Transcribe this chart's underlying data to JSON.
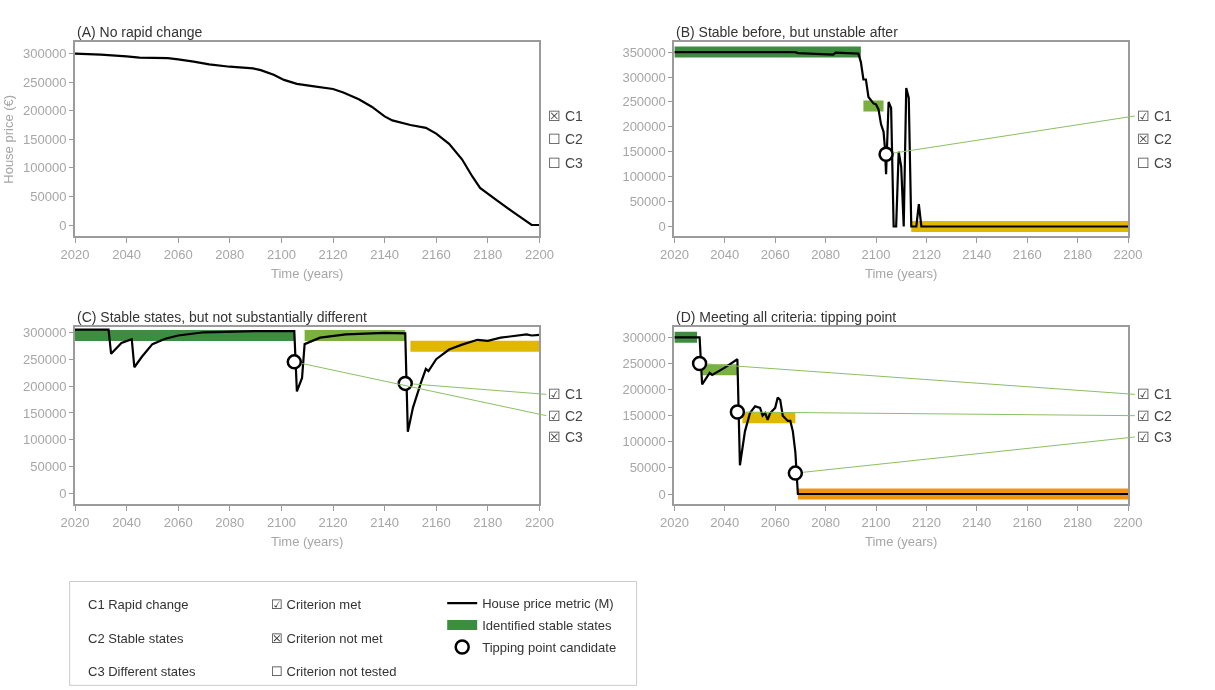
{
  "chart_data": [
    {
      "type": "line",
      "title": "(A) No rapid change",
      "xlabel": "Time (years)",
      "ylabel": "House price (€)",
      "xlim": [
        2020,
        2200
      ],
      "xticks": [
        2020,
        2040,
        2060,
        2080,
        2100,
        2120,
        2140,
        2160,
        2180,
        2200
      ],
      "ylim": [
        -20000,
        320000
      ],
      "yticks": [
        0,
        50000,
        100000,
        150000,
        200000,
        250000,
        300000
      ],
      "legend": "bottom",
      "series": [
        {
          "type": "line",
          "name": "House price metric (M)",
          "color": "#000000",
          "x": [
            2020,
            2030,
            2040,
            2045,
            2056,
            2060,
            2066,
            2072,
            2080,
            2089,
            2092,
            2097,
            2101,
            2106,
            2112,
            2120,
            2124,
            2130,
            2135,
            2140,
            2143,
            2150,
            2156,
            2160,
            2165,
            2170,
            2174,
            2177,
            2183,
            2190,
            2197,
            2200
          ],
          "values": [
            300000,
            298000,
            295000,
            293000,
            292000,
            290000,
            286000,
            281000,
            277000,
            274000,
            271000,
            263000,
            254000,
            247000,
            243000,
            238000,
            232000,
            220000,
            207000,
            190000,
            183000,
            175000,
            170000,
            160000,
            142000,
            115000,
            85000,
            65000,
            45000,
            22000,
            0,
            0
          ]
        }
      ],
      "annotations": [
        "☒ C1",
        "☐ C2",
        "☐ C3"
      ]
    },
    {
      "type": "line",
      "title": "(B) Stable before, but unstable after",
      "xlabel": "Time (years)",
      "xlim": [
        2020,
        2200
      ],
      "xticks": [
        2020,
        2040,
        2060,
        2080,
        2100,
        2120,
        2140,
        2160,
        2180,
        2200
      ],
      "ylim": [
        -20000,
        370000
      ],
      "yticks": [
        0,
        50000,
        100000,
        150000,
        200000,
        250000,
        300000,
        350000
      ],
      "legend": "bottom",
      "series": [
        {
          "type": "line",
          "name": "Identified stable states",
          "color": "#3d8c40",
          "x": [
            2020,
            2094
          ],
          "values": [
            350000,
            350000
          ]
        },
        {
          "type": "line",
          "color": "#7ab03f",
          "x": [
            2095,
            2103
          ],
          "values": [
            242000,
            242000
          ]
        },
        {
          "type": "line",
          "color": "#e0b800",
          "x": [
            2114,
            2200
          ],
          "values": [
            0,
            0
          ]
        },
        {
          "type": "line",
          "name": "House price metric (M)",
          "color": "#000000",
          "x": [
            2020,
            2068,
            2069,
            2083,
            2084,
            2093,
            2094,
            2095,
            2096,
            2097,
            2099,
            2100,
            2101,
            2102,
            2103,
            2103.5,
            2104,
            2105,
            2106,
            2107,
            2108,
            2109,
            2110,
            2111,
            2112,
            2113,
            2114,
            2116,
            2117,
            2118,
            2200
          ],
          "values": [
            350000,
            350000,
            348000,
            345000,
            349000,
            347000,
            330000,
            295000,
            295000,
            260000,
            247000,
            245000,
            235000,
            205000,
            190000,
            160000,
            105000,
            250000,
            238000,
            0,
            0,
            150000,
            120000,
            0,
            278000,
            258000,
            0,
            0,
            45000,
            0,
            0
          ]
        },
        {
          "type": "scatter",
          "name": "Tipping point candidate",
          "color": "#000000",
          "marker": "circle",
          "x": [
            2104
          ],
          "values": [
            145000
          ]
        }
      ],
      "annotations": [
        {
          "text": "☑ C1",
          "x": 2104,
          "y": 145000
        },
        "☒ C2",
        "☐ C3"
      ]
    },
    {
      "type": "line",
      "title": "(C) Stable states, but not substantially different",
      "xlabel": "Time (years)",
      "xlim": [
        2020,
        2200
      ],
      "xticks": [
        2020,
        2040,
        2060,
        2080,
        2100,
        2120,
        2140,
        2160,
        2180,
        2200
      ],
      "ylim": [
        -20000,
        310000
      ],
      "yticks": [
        0,
        50000,
        100000,
        150000,
        200000,
        250000,
        300000
      ],
      "series": [
        {
          "type": "line",
          "color": "#3d8c40",
          "x": [
            2020,
            2105
          ],
          "values": [
            294000,
            294000
          ]
        },
        {
          "type": "line",
          "color": "#7ab03f",
          "x": [
            2109,
            2148
          ],
          "values": [
            294000,
            294000
          ]
        },
        {
          "type": "line",
          "color": "#e0b800",
          "x": [
            2150,
            2200
          ],
          "values": [
            274000,
            274000
          ]
        },
        {
          "type": "line",
          "name": "House price metric (M)",
          "color": "#000000",
          "x": [
            2020,
            2033,
            2034,
            2038,
            2042,
            2043,
            2046,
            2050,
            2055,
            2060,
            2070,
            2090,
            2105,
            2106,
            2108,
            2109,
            2115,
            2125,
            2140,
            2148,
            2149,
            2151,
            2154,
            2156,
            2157,
            2160,
            2165,
            2170,
            2176,
            2180,
            2185,
            2195,
            2197,
            2200
          ],
          "values": [
            305000,
            305000,
            260000,
            280000,
            287000,
            235000,
            255000,
            278000,
            288000,
            294000,
            300000,
            302000,
            302000,
            190000,
            215000,
            278000,
            290000,
            296000,
            299000,
            298000,
            115000,
            160000,
            205000,
            232000,
            228000,
            250000,
            268000,
            277000,
            286000,
            284000,
            290000,
            296000,
            294000,
            295000
          ]
        },
        {
          "type": "scatter",
          "name": "Tipping point candidate",
          "color": "#000000",
          "marker": "circle",
          "x": [
            2105,
            2148
          ],
          "values": [
            245000,
            205000
          ]
        }
      ],
      "annotations": [
        {
          "text": "☑ C1",
          "x": 2148,
          "y": 205000
        },
        {
          "text": "☑ C2",
          "x": 2105,
          "y": 245000
        },
        "☒ C3"
      ]
    },
    {
      "type": "line",
      "title": "(D) Meeting all criteria: tipping point",
      "xlabel": "Time (years)",
      "xlim": [
        2020,
        2200
      ],
      "xticks": [
        2020,
        2040,
        2060,
        2080,
        2100,
        2120,
        2140,
        2160,
        2180,
        2200
      ],
      "ylim": [
        -20000,
        320000
      ],
      "yticks": [
        0,
        50000,
        100000,
        150000,
        200000,
        250000,
        300000
      ],
      "series": [
        {
          "type": "line",
          "color": "#3d8c40",
          "x": [
            2020,
            2029
          ],
          "values": [
            300000,
            300000
          ]
        },
        {
          "type": "line",
          "color": "#7ab03f",
          "x": [
            2031,
            2045
          ],
          "values": [
            238000,
            238000
          ]
        },
        {
          "type": "line",
          "color": "#e0b800",
          "x": [
            2047,
            2068
          ],
          "values": [
            146000,
            146000
          ]
        },
        {
          "type": "line",
          "color": "#f39314",
          "x": [
            2069,
            2200
          ],
          "values": [
            0,
            0
          ]
        },
        {
          "type": "line",
          "name": "House price metric (M)",
          "color": "#000000",
          "x": [
            2020,
            2030,
            2031,
            2034,
            2035,
            2040,
            2045,
            2046,
            2048,
            2050,
            2052,
            2054,
            2055,
            2056,
            2057,
            2058,
            2059,
            2060,
            2061,
            2062,
            2063,
            2065,
            2066,
            2067,
            2068,
            2069,
            2200
          ],
          "values": [
            300000,
            300000,
            210000,
            232000,
            228000,
            242000,
            258000,
            55000,
            120000,
            155000,
            168000,
            165000,
            150000,
            155000,
            142000,
            155000,
            160000,
            165000,
            185000,
            180000,
            150000,
            140000,
            140000,
            120000,
            80000,
            0,
            0
          ]
        },
        {
          "type": "scatter",
          "name": "Tipping point candidate",
          "color": "#000000",
          "marker": "circle",
          "x": [
            2030,
            2045,
            2068
          ],
          "values": [
            250000,
            157000,
            40000
          ]
        }
      ],
      "annotations": [
        {
          "text": "☑ C1",
          "x": 2030,
          "y": 250000
        },
        {
          "text": "☑ C2",
          "x": 2045,
          "y": 157000
        },
        {
          "text": "☑ C3",
          "x": 2068,
          "y": 40000
        }
      ]
    },
    {
      "type": "other",
      "annotations": [
        "C1 Rapid change",
        "C2 Stable states",
        "C3 Different states",
        "☑ Criterion met",
        "☒ Criterion not met",
        "☐ Criterion not tested"
      ]
    }
  ]
}
